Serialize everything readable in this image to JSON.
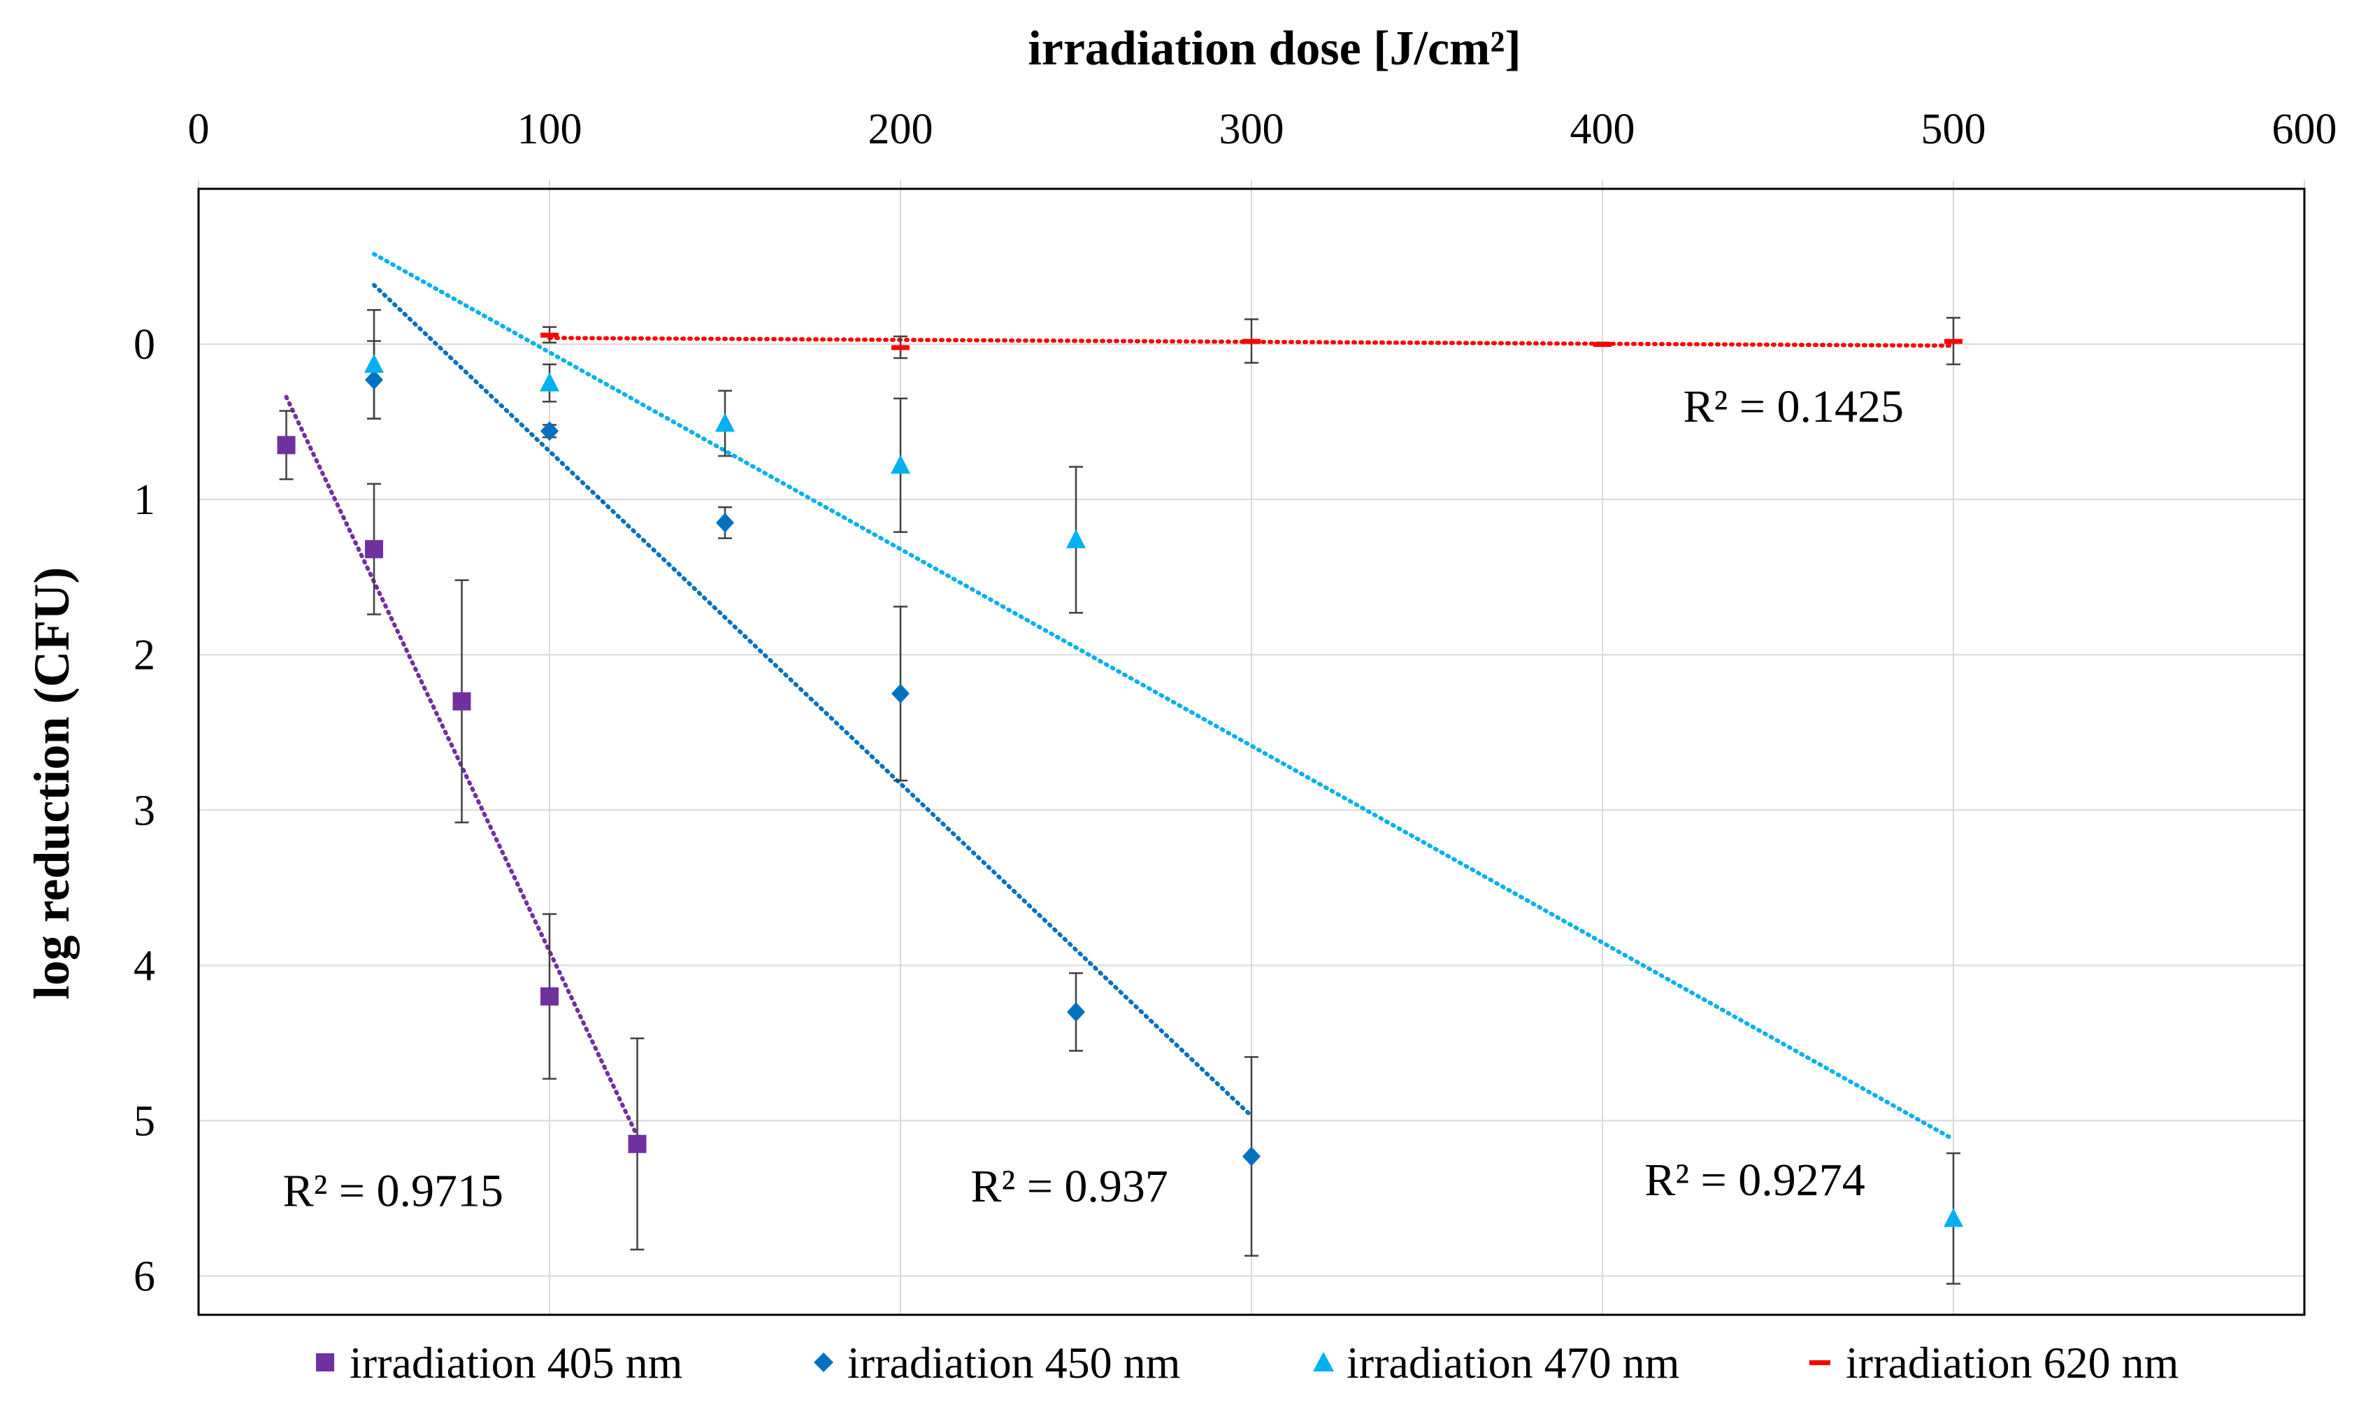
{
  "chart_data": {
    "type": "scatter",
    "xlabel": "irradiation dose [J/cm²]",
    "ylabel": "log reduction (CFU)",
    "x_axis_position": "top",
    "y_axis_reversed": true,
    "xlim": [
      0,
      600
    ],
    "ylim": [
      -1,
      6.25
    ],
    "x_ticks": [
      0,
      100,
      200,
      300,
      400,
      500,
      600
    ],
    "x_tick_labels": [
      "0",
      "100",
      "200",
      "300",
      "400",
      "500",
      "600"
    ],
    "y_ticks": [
      0,
      1,
      2,
      3,
      4,
      5,
      6
    ],
    "y_tick_labels": [
      "0",
      "1",
      "2",
      "3",
      "4",
      "5",
      "6"
    ],
    "grid": true,
    "legend_position": "bottom",
    "series": [
      {
        "name": "irradiation 405 nm",
        "color": "#7030a0",
        "marker": "square",
        "x": [
          25,
          50,
          75,
          100,
          125
        ],
        "y": [
          0.65,
          1.32,
          2.3,
          4.2,
          5.15
        ],
        "err": [
          0.22,
          0.42,
          0.78,
          0.53,
          0.68
        ],
        "trendline": {
          "x": [
            25,
            125
          ],
          "y": [
            0.34,
            5.1
          ]
        },
        "r2_label": "R² = 0.9715",
        "r2_anchor": {
          "x": 24,
          "y": 5.55
        }
      },
      {
        "name": "irradiation 450 nm",
        "color": "#0070c0",
        "marker": "diamond",
        "x": [
          50,
          100,
          150,
          200,
          250,
          300
        ],
        "y": [
          0.23,
          0.56,
          1.15,
          2.25,
          4.3,
          5.23
        ],
        "err": [
          0.25,
          0.04,
          0.1,
          0.56,
          0.25,
          0.64
        ],
        "trendline": {
          "x": [
            50,
            300
          ],
          "y": [
            -0.38,
            4.97
          ]
        },
        "r2_label": "R² = 0.937",
        "r2_anchor": {
          "x": 220,
          "y": 5.52
        }
      },
      {
        "name": "irradiation 470 nm",
        "color": "#00b0f0",
        "marker": "triangle",
        "x": [
          50,
          100,
          150,
          200,
          250,
          500
        ],
        "y": [
          0.13,
          0.25,
          0.51,
          0.78,
          1.26,
          5.63
        ],
        "err": [
          0.35,
          0.12,
          0.21,
          0.43,
          0.47,
          0.42
        ],
        "trendline": {
          "x": [
            50,
            500
          ],
          "y": [
            -0.58,
            5.12
          ]
        },
        "r2_label": "R² = 0.9274",
        "r2_anchor": {
          "x": 412,
          "y": 5.48
        }
      },
      {
        "name": "irradiation 620 nm",
        "color": "#ff0000",
        "marker": "dash",
        "x": [
          100,
          200,
          300,
          400,
          500
        ],
        "y": [
          -0.06,
          0.02,
          -0.02,
          0.0,
          -0.02
        ],
        "err": [
          0.05,
          0.07,
          0.14,
          0.01,
          0.15
        ],
        "trendline": {
          "x": [
            100,
            500
          ],
          "y": [
            -0.04,
            0.01
          ]
        },
        "r2_label": "R² = 0.1425",
        "r2_anchor": {
          "x": 423,
          "y": 0.5
        }
      }
    ]
  }
}
